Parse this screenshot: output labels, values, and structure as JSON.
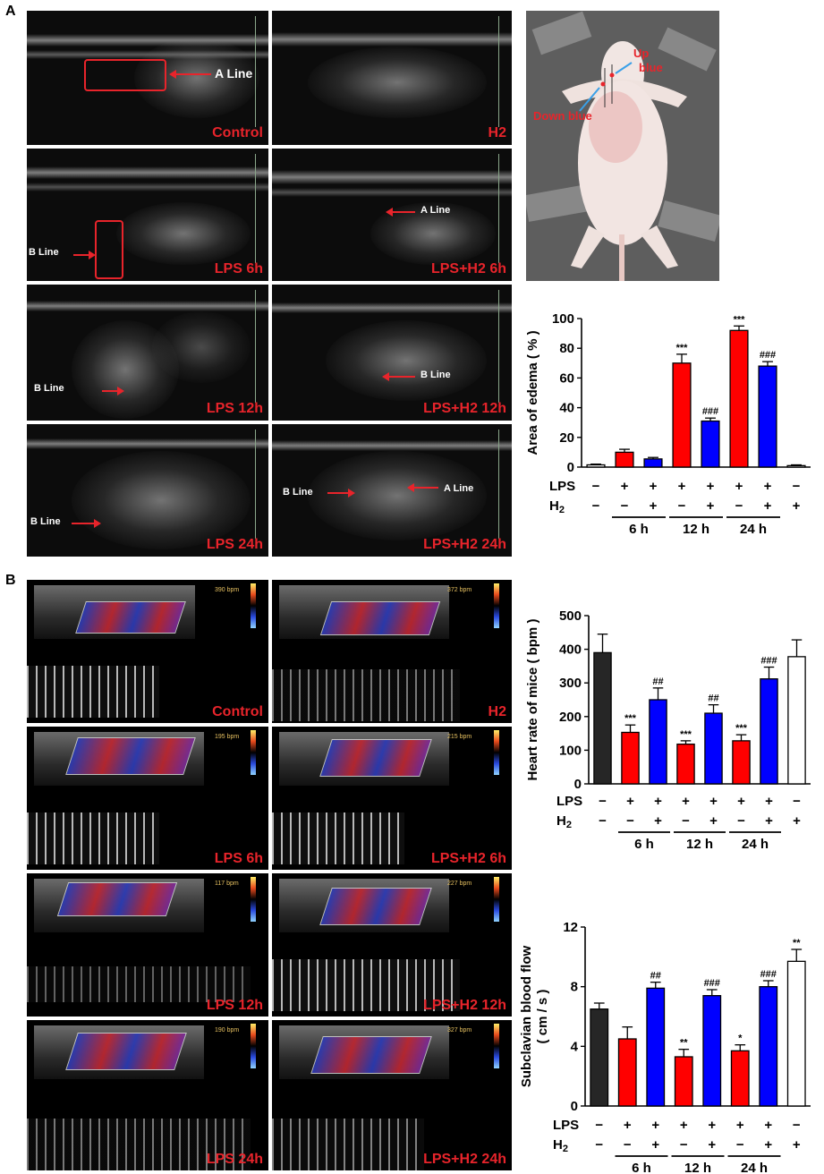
{
  "panels": {
    "a": "A",
    "b": "B"
  },
  "ultrasound": {
    "conditions": [
      "Control",
      "H2",
      "LPS 6h",
      "LPS+H2 6h",
      "LPS 12h",
      "LPS+H2 12h",
      "LPS 24h",
      "LPS+H2 24h"
    ],
    "annotations": {
      "a_line": "A Line",
      "b_line": "B Line"
    }
  },
  "mouse_photo": {
    "up_blue": "Up\nblue",
    "down_blue": "Down  blue"
  },
  "doppler": {
    "conditions": [
      "Control",
      "H2",
      "LPS 6h",
      "LPS+H2 6h",
      "LPS 12h",
      "LPS+H2 12h",
      "LPS 24h",
      "LPS+H2 24h"
    ],
    "heart_rate_text": [
      "390 bpm",
      "372 bpm",
      "195 bpm",
      "215 bpm",
      "117 bpm",
      "227 bpm",
      "190 bpm",
      "327 bpm"
    ]
  },
  "colors": {
    "control": "#262626",
    "lps": "#ff0000",
    "lps_h2": "#0000ff",
    "h2": "#ffffff",
    "annotation_red": "#e8242b"
  },
  "chart_data": [
    {
      "type": "bar",
      "ylabel": "Area of edema ( % )",
      "ylim": [
        0,
        100
      ],
      "yticks": [
        0,
        20,
        40,
        60,
        80,
        100
      ],
      "values": [
        1.5,
        10,
        5.5,
        70,
        31,
        92,
        68,
        1
      ],
      "errors": [
        0.5,
        2,
        1,
        6,
        2,
        3,
        3,
        0.5
      ],
      "significance": [
        "",
        "",
        "",
        "***",
        "###",
        "***",
        "###",
        ""
      ],
      "bar_colors": [
        "#ffffff",
        "#ff0000",
        "#0000ff",
        "#ff0000",
        "#0000ff",
        "#ff0000",
        "#0000ff",
        "#ffffff"
      ],
      "lps_row": [
        "−",
        "+",
        "+",
        "+",
        "+",
        "+",
        "+",
        "−"
      ],
      "h2_row": [
        "",
        "−",
        "+",
        "−",
        "+",
        "−",
        "+",
        "+"
      ],
      "h2_row_first": "−",
      "row_labels": {
        "lps": "LPS",
        "h2": "H2"
      },
      "groups": [
        "6 h",
        "12 h",
        "24 h"
      ]
    },
    {
      "type": "bar",
      "ylabel": "Heart rate of mice ( bpm )",
      "ylim": [
        0,
        500
      ],
      "yticks": [
        0,
        100,
        200,
        300,
        400,
        500
      ],
      "values": [
        390,
        153,
        250,
        118,
        210,
        128,
        312,
        378
      ],
      "errors": [
        55,
        22,
        35,
        10,
        25,
        18,
        35,
        50
      ],
      "significance": [
        "",
        "***",
        "##",
        "***",
        "##",
        "***",
        "###",
        ""
      ],
      "bar_colors": [
        "#262626",
        "#ff0000",
        "#0000ff",
        "#ff0000",
        "#0000ff",
        "#ff0000",
        "#0000ff",
        "#ffffff"
      ],
      "lps_row": [
        "−",
        "+",
        "+",
        "+",
        "+",
        "+",
        "+",
        "−"
      ],
      "h2_row": [
        "−",
        "−",
        "+",
        "−",
        "+",
        "−",
        "+",
        "+"
      ],
      "row_labels": {
        "lps": "LPS",
        "h2": "H2"
      },
      "groups": [
        "6 h",
        "12 h",
        "24 h"
      ]
    },
    {
      "type": "bar",
      "ylabel": "Subclavian blood flow\n( cm / s )",
      "ylim": [
        0,
        12
      ],
      "yticks": [
        0,
        4,
        8,
        12
      ],
      "values": [
        6.5,
        4.5,
        7.9,
        3.3,
        7.4,
        3.7,
        8.0,
        9.7
      ],
      "errors": [
        0.4,
        0.8,
        0.4,
        0.5,
        0.4,
        0.4,
        0.4,
        0.8
      ],
      "significance": [
        "",
        "",
        "##",
        "**",
        "###",
        "*",
        "###",
        "**"
      ],
      "bar_colors": [
        "#262626",
        "#ff0000",
        "#0000ff",
        "#ff0000",
        "#0000ff",
        "#ff0000",
        "#0000ff",
        "#ffffff"
      ],
      "lps_row": [
        "−",
        "+",
        "+",
        "+",
        "+",
        "+",
        "+",
        "−"
      ],
      "h2_row": [
        "−",
        "−",
        "+",
        "−",
        "+",
        "−",
        "+",
        "+"
      ],
      "row_labels": {
        "lps": "LPS",
        "h2": "H2"
      },
      "groups": [
        "6 h",
        "12 h",
        "24 h"
      ]
    }
  ]
}
